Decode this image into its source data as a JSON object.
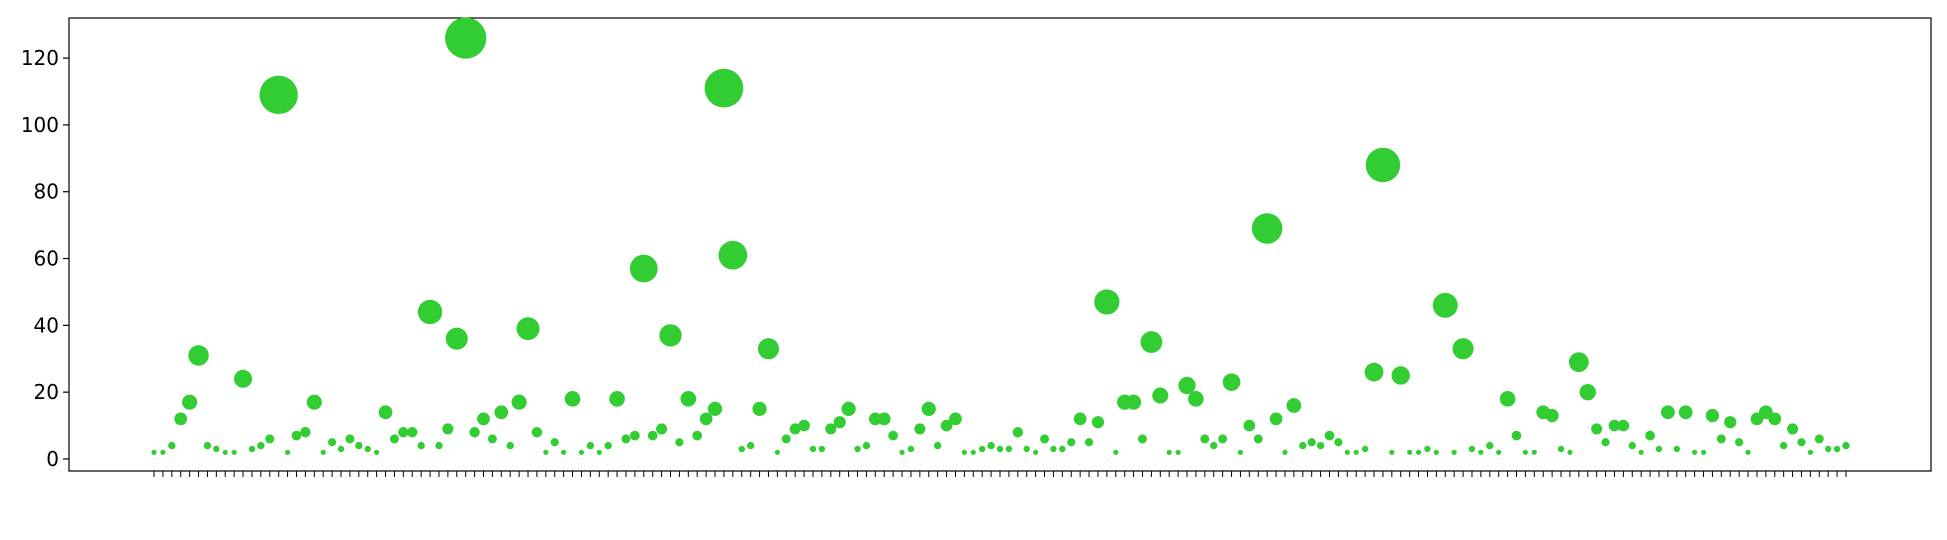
{
  "chart_data": {
    "type": "scatter",
    "title": "",
    "xlabel": "",
    "ylabel": "",
    "ylim": [
      -3.6,
      132
    ],
    "yticks": [
      0,
      20,
      40,
      60,
      80,
      100,
      120
    ],
    "grid": false,
    "legend": "none",
    "marker_color": "#32cd32",
    "values": [
      2,
      2,
      4,
      12,
      17,
      31,
      4,
      3,
      2,
      2,
      24,
      3,
      4,
      6,
      109,
      2,
      7,
      8,
      17,
      2,
      5,
      3,
      6,
      4,
      3,
      2,
      14,
      6,
      8,
      8,
      4,
      44,
      4,
      9,
      36,
      126,
      8,
      12,
      6,
      14,
      4,
      17,
      39,
      8,
      2,
      5,
      2,
      18,
      2,
      4,
      2,
      4,
      18,
      6,
      7,
      57,
      7,
      9,
      37,
      5,
      18,
      7,
      12,
      15,
      111,
      61,
      3,
      4,
      15,
      33,
      2,
      6,
      9,
      10,
      3,
      3,
      9,
      11,
      15,
      3,
      4,
      12,
      12,
      7,
      2,
      3,
      9,
      15,
      4,
      10,
      12,
      2,
      2,
      3,
      4,
      3,
      3,
      8,
      3,
      2,
      6,
      3,
      3,
      5,
      12,
      5,
      11,
      47,
      2,
      17,
      17,
      6,
      35,
      19,
      2,
      2,
      22,
      18,
      6,
      4,
      6,
      23,
      2,
      10,
      6,
      69,
      12,
      2,
      16,
      4,
      5,
      4,
      7,
      5,
      2,
      2,
      3,
      26,
      88,
      2,
      25,
      2,
      2,
      3,
      2,
      46,
      2,
      33,
      3,
      2,
      4,
      2,
      18,
      7,
      2,
      2,
      14,
      13,
      3,
      2,
      29,
      20,
      9,
      5,
      10,
      10,
      4,
      2,
      7,
      3,
      14,
      3,
      14,
      2,
      2,
      13,
      6,
      11,
      5,
      2,
      12,
      14,
      12,
      4,
      9,
      5,
      2,
      6,
      3,
      3,
      4
    ],
    "point_size_note": "marker area grows with value"
  }
}
